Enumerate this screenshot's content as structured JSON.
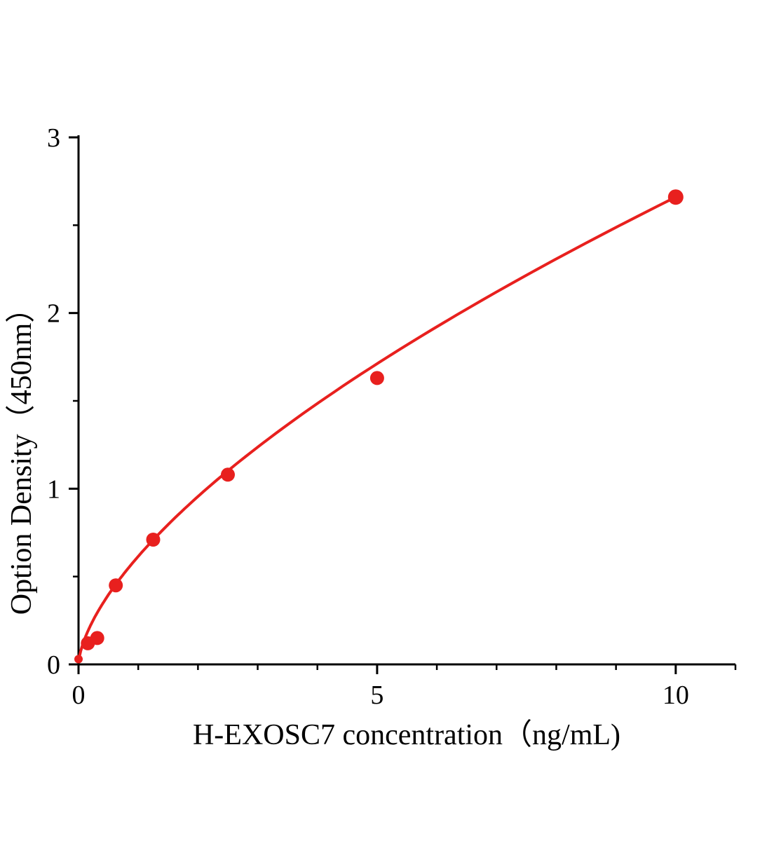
{
  "chart_data": {
    "type": "scatter",
    "title": "",
    "xlabel": "H-EXOSC7 concentration（ng/mL)",
    "ylabel": "Option Density（450nm）",
    "x": [
      0,
      0.156,
      0.313,
      0.625,
      1.25,
      2.5,
      5,
      10
    ],
    "y": [
      0.03,
      0.12,
      0.15,
      0.45,
      0.71,
      1.08,
      1.63,
      2.66
    ],
    "xlim": [
      0,
      11
    ],
    "ylim": [
      0,
      3
    ],
    "x_major_ticks": [
      0,
      5,
      10
    ],
    "x_minor_ticks": [
      1,
      2,
      3,
      4,
      6,
      7,
      8,
      9,
      11
    ],
    "y_major_ticks": [
      0,
      1,
      2,
      3
    ],
    "y_minor_ticks": [
      0.5,
      1.5,
      2.5
    ],
    "grid": false,
    "legend": null,
    "fit": {
      "type": "power",
      "a": 0.615,
      "b": 0.636,
      "x_start": 0.004,
      "x_end": 10
    },
    "point_color": "#e8201e",
    "line_color": "#e8201e",
    "axis_color": "#000000",
    "marker_sizes": [
      6,
      10,
      10,
      10,
      10,
      10,
      10,
      11
    ]
  }
}
